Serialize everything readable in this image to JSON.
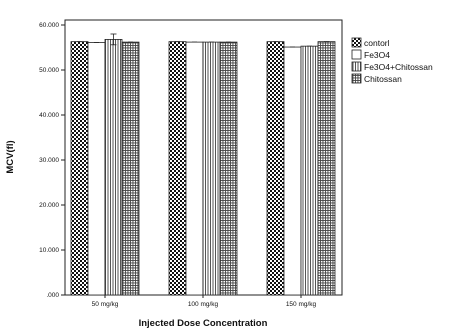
{
  "chart_data": {
    "type": "bar",
    "title": "",
    "xlabel": "Injected Dose Concentration",
    "ylabel": "MCV(fl)",
    "ylim": [
      0,
      60
    ],
    "yticks": [
      0,
      10,
      20,
      30,
      40,
      50,
      60
    ],
    "ytick_labels": [
      ".000",
      "10.000",
      "20.000",
      "30.000",
      "40.000",
      "50.000",
      "60.000"
    ],
    "categories": [
      "50 mg/kg",
      "100 mg/kg",
      "150 mg/kg"
    ],
    "series": [
      {
        "name": "contorl",
        "values": [
          56.3,
          56.3,
          56.3
        ],
        "errors": [
          0,
          0,
          0
        ],
        "pattern": "checker"
      },
      {
        "name": "Fe3O4",
        "values": [
          56.1,
          56.2,
          55.1
        ],
        "errors": [
          0,
          0,
          0
        ],
        "pattern": "white"
      },
      {
        "name": "Fe3O4+Chitossan",
        "values": [
          56.8,
          56.2,
          55.3
        ],
        "errors": [
          1.2,
          0,
          0
        ],
        "pattern": "vlines"
      },
      {
        "name": "Chitossan",
        "values": [
          56.2,
          56.2,
          56.3
        ],
        "errors": [
          0,
          0,
          0
        ],
        "pattern": "grid"
      }
    ],
    "grid": false,
    "legend_placement": "right"
  }
}
